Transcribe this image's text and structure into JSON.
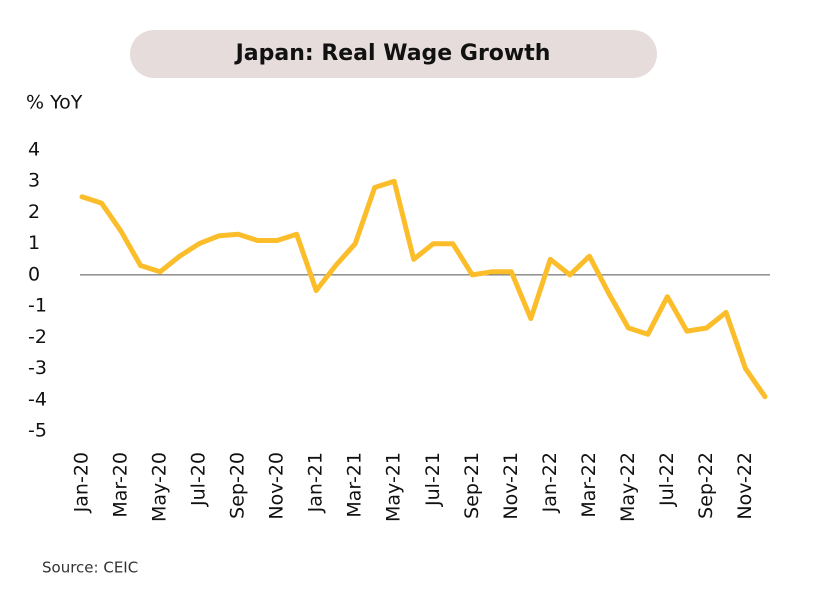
{
  "chart_data": {
    "type": "line",
    "title": "Japan: Real Wage Growth",
    "y_label": "% YoY",
    "source": "Source: CEIC",
    "categories": [
      "Jan-20",
      null,
      "Mar-20",
      null,
      "May-20",
      null,
      "Jul-20",
      null,
      "Sep-20",
      null,
      "Nov-20",
      null,
      "Jan-21",
      null,
      "Mar-21",
      null,
      "May-21",
      null,
      "Jul-21",
      null,
      "Sep-21",
      null,
      "Nov-21",
      null,
      "Jan-22",
      null,
      "Mar-22",
      null,
      "May-22",
      null,
      "Jul-22",
      null,
      "Sep-22",
      null,
      "Nov-22",
      null
    ],
    "series": [
      {
        "name": "Real wage growth",
        "color": "#fbbd2a",
        "values": [
          2.5,
          2.3,
          1.4,
          0.3,
          0.1,
          0.6,
          1.0,
          1.25,
          1.3,
          1.1,
          1.1,
          1.3,
          -0.5,
          0.3,
          1.0,
          2.8,
          3.0,
          0.5,
          1.0,
          1.0,
          0.0,
          0.1,
          0.1,
          -1.4,
          0.5,
          0.0,
          0.6,
          -0.6,
          -1.7,
          -1.9,
          -0.7,
          -1.8,
          -1.7,
          -1.2,
          -3.0,
          -3.9
        ]
      }
    ],
    "ylim": [
      -5,
      4
    ],
    "yticks": [
      -5,
      -4,
      -3,
      -2,
      -1,
      0,
      1,
      2,
      3,
      4
    ],
    "grid": false
  }
}
